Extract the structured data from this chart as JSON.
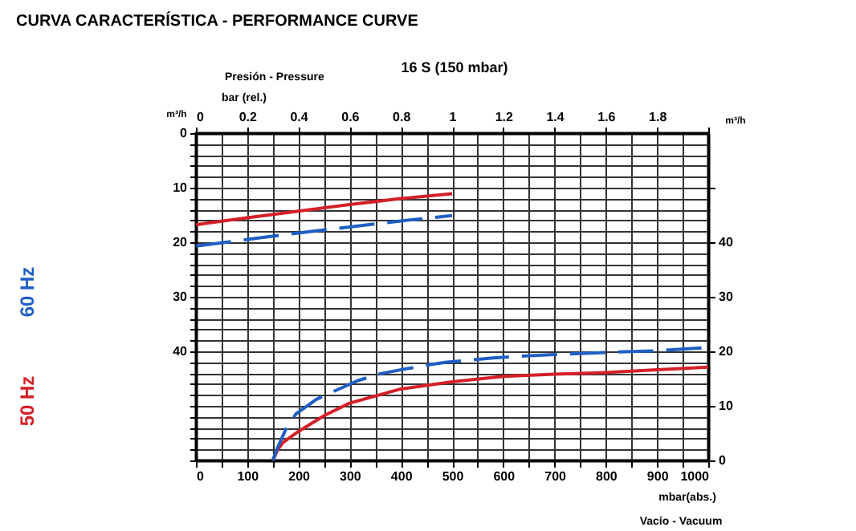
{
  "chart_data": {
    "type": "line",
    "title": "CURVA CARACTERÍSTICA - PERFORMANCE CURVE",
    "subtitle": "16 S (150 mbar)",
    "xlabel": "mbar(abs.)",
    "x2label": "bar  (rel.)",
    "ylabel": "m³/h",
    "y2label": "m³/h",
    "annotations": [
      "Presión - Pressure",
      "Vacío - Vacuum"
    ],
    "legend": "left",
    "grid": true,
    "xlim": [
      0,
      1000
    ],
    "xticks": [
      0,
      {
        "value": 50,
        "label": null
      },
      100,
      {
        "value": 150,
        "label": null
      },
      200,
      {
        "value": 250,
        "label": null
      },
      300,
      {
        "value": 350,
        "label": null
      },
      400,
      {
        "value": 450,
        "label": null
      },
      500,
      {
        "value": 550,
        "label": null
      },
      600,
      {
        "value": 650,
        "label": null
      },
      700,
      {
        "value": 750,
        "label": null
      },
      800,
      {
        "value": 850,
        "label": null
      },
      900,
      {
        "value": 950,
        "label": null
      },
      1000
    ],
    "x2lim": [
      0,
      2
    ],
    "x2ticks": [
      0,
      0.2,
      0.4,
      0.6,
      0.8,
      1,
      1.2,
      1.4,
      1.6,
      1.8,
      {
        "value": 2,
        "label": null
      }
    ],
    "ylim": [
      60,
      0
    ],
    "yticks": [
      0,
      {
        "value": 2,
        "label": null
      },
      {
        "value": 4,
        "label": null
      },
      {
        "value": 6,
        "label": null
      },
      {
        "value": 8,
        "label": null
      },
      10,
      {
        "value": 12,
        "label": null
      },
      {
        "value": 14,
        "label": null
      },
      {
        "value": 16,
        "label": null
      },
      {
        "value": 18,
        "label": null
      },
      20,
      {
        "value": 22,
        "label": null
      },
      {
        "value": 24,
        "label": null
      },
      {
        "value": 26,
        "label": null
      },
      {
        "value": 28,
        "label": null
      },
      30,
      {
        "value": 32,
        "label": null
      },
      {
        "value": 34,
        "label": null
      },
      {
        "value": 36,
        "label": null
      },
      {
        "value": 38,
        "label": null
      },
      40,
      {
        "value": 42,
        "label": null
      },
      {
        "value": 44,
        "label": null
      },
      {
        "value": 46,
        "label": null
      },
      {
        "value": 48,
        "label": null
      },
      {
        "value": 50,
        "label": null
      },
      {
        "value": 52,
        "label": null
      },
      {
        "value": 54,
        "label": null
      },
      {
        "value": 56,
        "label": null
      },
      {
        "value": 58,
        "label": null
      },
      {
        "value": 60,
        "label": null
      }
    ],
    "y2lim": [
      0,
      60
    ],
    "y2ticks": [
      0,
      10,
      20,
      30,
      40,
      {
        "value": 50,
        "label": null
      }
    ],
    "series": [
      {
        "name": "50 Hz",
        "color": "#d42027",
        "axis": "x2",
        "line_style": "solid",
        "x": [
          0,
          0.2,
          0.4,
          0.6,
          0.8,
          1
        ],
        "values": [
          16.8,
          15.5,
          14.3,
          13.1,
          12.0,
          11.1
        ]
      },
      {
        "name": "60 Hz",
        "color": "#1f5fc4",
        "axis": "x2",
        "line_style": "dashed",
        "x": [
          0,
          0.2,
          0.4,
          0.6,
          0.8,
          1
        ],
        "values": [
          20.7,
          19.5,
          18.3,
          17.2,
          16.1,
          15.1
        ]
      },
      {
        "color": "#d42027",
        "axis": "y2",
        "line_style": "solid",
        "x": [
          150,
          160,
          170,
          200,
          250,
          300,
          400,
          500,
          600,
          700,
          800,
          900,
          1000
        ],
        "values": [
          0,
          2.0,
          3.3,
          5.3,
          8.2,
          10.5,
          13.1,
          14.4,
          15.4,
          15.8,
          16.1,
          16.6,
          17.1
        ]
      },
      {
        "color": "#1f5fc4",
        "axis": "y2",
        "line_style": "dashed",
        "x": [
          150,
          160,
          175,
          195,
          235,
          315,
          360,
          445,
          490,
          580,
          630,
          700,
          800,
          900,
          1000
        ],
        "values": [
          0,
          2.5,
          5.6,
          8.5,
          11.2,
          14.6,
          15.9,
          17.4,
          18.0,
          18.8,
          19.1,
          19.4,
          19.8,
          20.1,
          20.7
        ]
      }
    ]
  }
}
